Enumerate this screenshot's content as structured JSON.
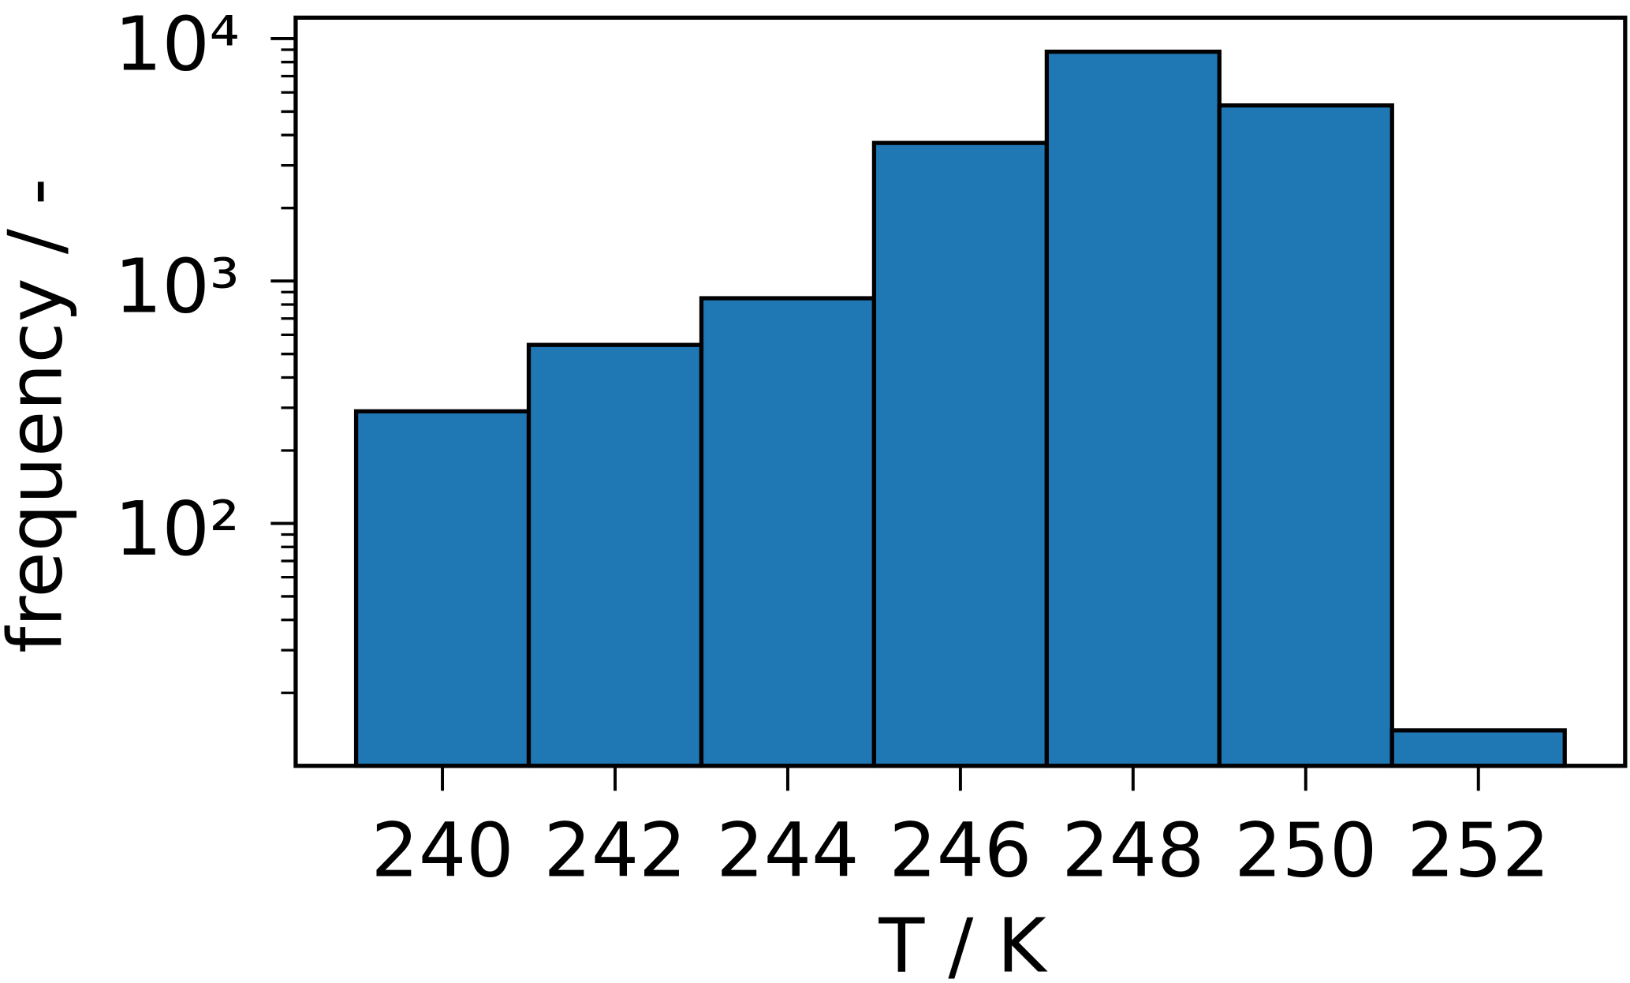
{
  "chart_data": {
    "type": "histogram",
    "xlabel": "T / K",
    "ylabel": "frequency / -",
    "bins": [
      239,
      241,
      243,
      245,
      247,
      249,
      251,
      253
    ],
    "values": [
      290,
      545,
      849,
      3712,
      8830,
      5300,
      14
    ],
    "color": "#1f77b4",
    "edgecolor": "#000000",
    "xlim": [
      238.3,
      253.7
    ],
    "xticks": [
      240,
      242,
      244,
      246,
      248,
      250,
      252
    ],
    "ylim": [
      10,
      12200
    ],
    "yscale": "log",
    "yticks": [
      {
        "value": 100,
        "label": "10²"
      },
      {
        "value": 1000,
        "label": "10³"
      },
      {
        "value": 10000,
        "label": "10⁴"
      }
    ],
    "yticks_minor": [
      20,
      30,
      40,
      50,
      60,
      70,
      80,
      90,
      200,
      300,
      400,
      500,
      600,
      700,
      800,
      900,
      2000,
      3000,
      4000,
      5000,
      6000,
      7000,
      8000,
      9000
    ],
    "grid": false
  }
}
